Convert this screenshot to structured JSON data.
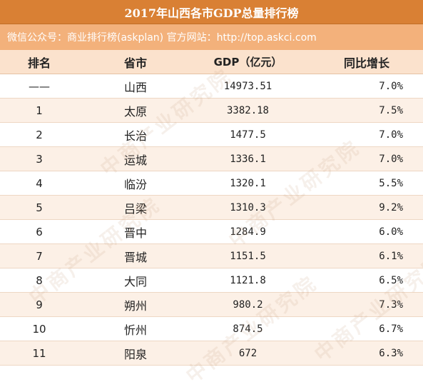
{
  "title": "2017年山西各市GDP总量排行榜",
  "source_line": "微信公众号：商业排行榜(askplan)  官方网站：http://top.askci.com",
  "watermark_text": "中商产业研究院",
  "colors": {
    "title_bg": "#d98034",
    "source_bg": "#f3b17b",
    "header_bg": "#fbe2cd",
    "row_alt_bg": "#fcf0e6"
  },
  "table": {
    "headers": [
      "排名",
      "省市",
      "GDP（亿元）",
      "同比增长"
    ],
    "rows": [
      {
        "rank": "——",
        "city": "山西",
        "gdp": "14973.51",
        "growth": "7.0%"
      },
      {
        "rank": "1",
        "city": "太原",
        "gdp": "3382.18",
        "growth": "7.5%"
      },
      {
        "rank": "2",
        "city": "长治",
        "gdp": "1477.5",
        "growth": "7.0%"
      },
      {
        "rank": "3",
        "city": "运城",
        "gdp": "1336.1",
        "growth": "7.0%"
      },
      {
        "rank": "4",
        "city": "临汾",
        "gdp": "1320.1",
        "growth": "5.5%"
      },
      {
        "rank": "5",
        "city": "吕梁",
        "gdp": "1310.3",
        "growth": "9.2%"
      },
      {
        "rank": "6",
        "city": "晋中",
        "gdp": "1284.9",
        "growth": "6.0%"
      },
      {
        "rank": "7",
        "city": "晋城",
        "gdp": "1151.5",
        "growth": "6.1%"
      },
      {
        "rank": "8",
        "city": "大同",
        "gdp": "1121.8",
        "growth": "6.5%"
      },
      {
        "rank": "9",
        "city": "朔州",
        "gdp": "980.2",
        "growth": "7.3%"
      },
      {
        "rank": "10",
        "city": "忻州",
        "gdp": "874.5",
        "growth": "6.7%"
      },
      {
        "rank": "11",
        "city": "阳泉",
        "gdp": "672",
        "growth": "6.3%"
      }
    ]
  }
}
